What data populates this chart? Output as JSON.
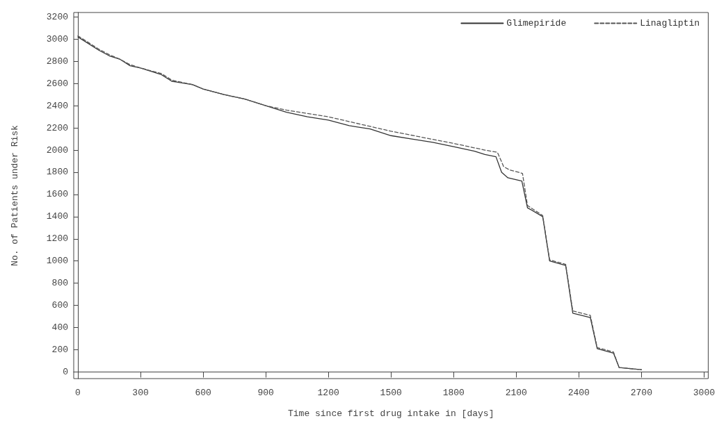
{
  "chart_data": {
    "type": "line",
    "xlabel": "Time since first drug intake in [days]",
    "ylabel": "No. of Patients under Risk",
    "xlim": [
      -20,
      3020
    ],
    "xticks": [
      0,
      300,
      600,
      900,
      1200,
      1500,
      1800,
      2100,
      2400,
      2700,
      3000
    ],
    "ylim": [
      -60,
      3240
    ],
    "yticks": [
      0,
      200,
      400,
      600,
      800,
      1000,
      1200,
      1400,
      1600,
      1800,
      2000,
      2200,
      2400,
      2600,
      2800,
      3000,
      3200
    ],
    "legend": "top right",
    "marker": "none",
    "series": [
      {
        "name": "Glimepiride",
        "color": "#333333",
        "line_style": "solid",
        "x": [
          0,
          100,
          150,
          200,
          250,
          300,
          400,
          450,
          550,
          600,
          700,
          800,
          900,
          1000,
          1100,
          1200,
          1300,
          1400,
          1500,
          1600,
          1700,
          1800,
          1900,
          1950,
          2003,
          2030,
          2060,
          2127,
          2154,
          2227,
          2260,
          2337,
          2371,
          2455,
          2488,
          2566,
          2593,
          2700
        ],
        "values": [
          3020,
          2900,
          2850,
          2820,
          2760,
          2740,
          2680,
          2620,
          2590,
          2550,
          2500,
          2460,
          2400,
          2340,
          2300,
          2270,
          2220,
          2190,
          2130,
          2100,
          2070,
          2030,
          1990,
          1960,
          1940,
          1800,
          1750,
          1720,
          1480,
          1400,
          1000,
          960,
          530,
          490,
          210,
          170,
          40,
          20
        ]
      },
      {
        "name": "Linagliptin",
        "color": "#555555",
        "line_style": "dashed",
        "x": [
          0,
          100,
          150,
          200,
          250,
          300,
          400,
          450,
          550,
          600,
          700,
          800,
          900,
          1000,
          1200,
          1500,
          1800,
          1950,
          2010,
          2040,
          2070,
          2130,
          2154,
          2227,
          2260,
          2337,
          2371,
          2455,
          2488,
          2566,
          2593,
          2700
        ],
        "values": [
          3030,
          2910,
          2860,
          2820,
          2770,
          2740,
          2690,
          2630,
          2590,
          2550,
          2500,
          2460,
          2400,
          2360,
          2300,
          2170,
          2060,
          2000,
          1980,
          1850,
          1820,
          1790,
          1500,
          1410,
          1010,
          970,
          550,
          510,
          220,
          180,
          40,
          20
        ]
      }
    ]
  }
}
